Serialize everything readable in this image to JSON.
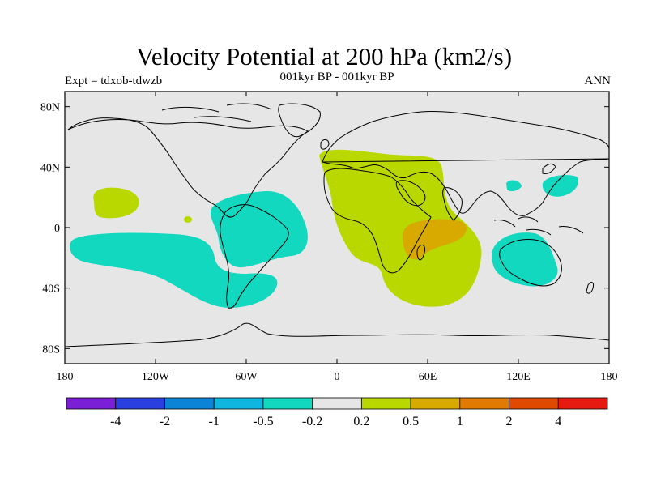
{
  "title": "Velocity Potential at 200 hPa (km2/s)",
  "subtitle": "001kyr BP - 001kyr BP",
  "left_label": "Expt = tdxob-tdwzb",
  "right_label": "ANN",
  "map": {
    "projection": "cylindrical-equidistant",
    "lon_range": [
      -180,
      180
    ],
    "lat_range": [
      -90,
      90
    ],
    "background_color": "#e6e6e6",
    "coastline_color": "#000000"
  },
  "axes": {
    "lat_ticks": [
      {
        "value": 80,
        "label": "80N"
      },
      {
        "value": 40,
        "label": "40N"
      },
      {
        "value": 0,
        "label": "0"
      },
      {
        "value": -40,
        "label": "40S"
      },
      {
        "value": -80,
        "label": "80S"
      }
    ],
    "lon_ticks": [
      {
        "value": -180,
        "label": "180"
      },
      {
        "value": -120,
        "label": "120W"
      },
      {
        "value": -60,
        "label": "60W"
      },
      {
        "value": 0,
        "label": "0"
      },
      {
        "value": 60,
        "label": "60E"
      },
      {
        "value": 120,
        "label": "120E"
      },
      {
        "value": 180,
        "label": "180"
      }
    ]
  },
  "colorbar": {
    "colors": [
      "#7a1fd6",
      "#2a3fe0",
      "#0b84d8",
      "#0fb6e0",
      "#12d8c0",
      "#e6e6e6",
      "#b8d800",
      "#d8aa00",
      "#e07a00",
      "#e04a00",
      "#e61a10"
    ],
    "labels": [
      "-4",
      "-2",
      "-1",
      "-0.5",
      "-0.2",
      "0.2",
      "0.5",
      "1",
      "2",
      "4"
    ]
  },
  "shaded_regions": [
    {
      "name": "north-pacific-positive",
      "level": "0.2 to 0.5",
      "color": "#b8d800"
    },
    {
      "name": "south-pacific-negative",
      "level": "-0.5 to -0.2",
      "color": "#12d8c0"
    },
    {
      "name": "south-america-negative",
      "level": "-0.5 to -0.2",
      "color": "#12d8c0"
    },
    {
      "name": "africa-indian-ocean-positive",
      "level": "0.2 to 0.5",
      "color": "#b8d800"
    },
    {
      "name": "indian-ocean-core-positive",
      "level": "0.5 to 1",
      "color": "#d8aa00"
    },
    {
      "name": "australia-negative",
      "level": "-0.5 to -0.2",
      "color": "#12d8c0"
    },
    {
      "name": "west-pacific-negative",
      "level": "-0.5 to -0.2",
      "color": "#12d8c0"
    }
  ]
}
